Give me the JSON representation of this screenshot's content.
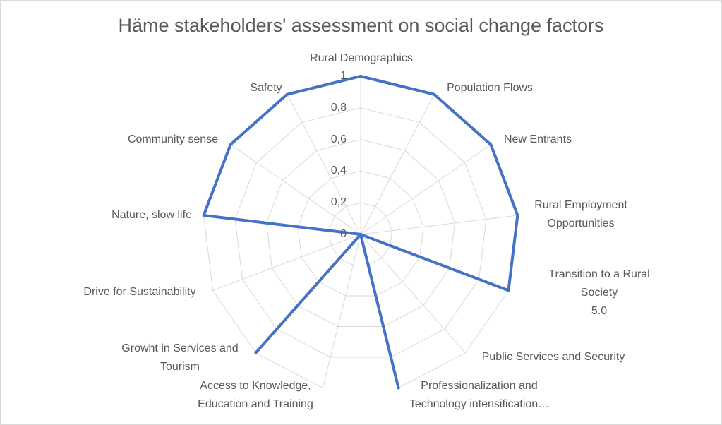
{
  "chart_data": {
    "type": "radar",
    "title": "Häme stakeholders' assessment on social change factors",
    "categories": [
      "Rural Demographics",
      "Population Flows",
      "New Entrants",
      "Rural Employment\nOpportunities",
      "Transition to a Rural Society\n5.0",
      "Public Services and Security",
      "Professionalization and\nTechnology intensification…",
      "Access to Knowledge,\nEducation and Training",
      "Growht in Services and\nTourism",
      "Drive for Sustainability",
      "Nature, slow life",
      "Community sense",
      "Safety"
    ],
    "values": [
      1,
      1,
      1,
      1,
      1,
      0,
      1,
      0,
      1,
      0,
      1,
      1,
      1
    ],
    "rlim": [
      0,
      1
    ],
    "ticks": [
      "0",
      "0,2",
      "0,4",
      "0,6",
      "0,8",
      "1"
    ],
    "tick_values": [
      0,
      0.2,
      0.4,
      0.6,
      0.8,
      1
    ],
    "grid": true,
    "series_color": "#4472c4",
    "grid_color": "#d9d9d9"
  }
}
